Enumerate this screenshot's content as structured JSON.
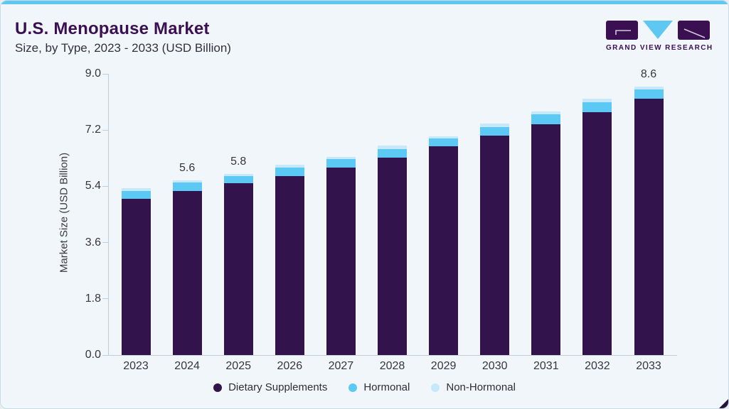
{
  "header": {
    "title": "U.S. Menopause Market",
    "subtitle": "Size, by Type, 2023 - 2033 (USD Billion)"
  },
  "logo": {
    "text": "GRAND VIEW RESEARCH"
  },
  "colors": {
    "accent_blue": "#5FC8F2",
    "brand_purple": "#3A1053",
    "background": "#F0F6FA",
    "axis_gray": "#C2CCD6",
    "text_dark": "#36363E"
  },
  "chart_data": {
    "type": "bar",
    "stacked": true,
    "title": "U.S. Menopause Market Size, by Type, 2023 - 2033 (USD Billion)",
    "categories": [
      "2023",
      "2024",
      "2025",
      "2026",
      "2027",
      "2028",
      "2029",
      "2030",
      "2031",
      "2032",
      "2033"
    ],
    "series": [
      {
        "name": "Dietary Supplements",
        "color": "#33134B",
        "values": [
          5.0,
          5.25,
          5.5,
          5.73,
          6.0,
          6.32,
          6.68,
          7.02,
          7.38,
          7.78,
          8.2
        ]
      },
      {
        "name": "Hormonal",
        "color": "#5BC9F3",
        "values": [
          0.24,
          0.28,
          0.23,
          0.28,
          0.27,
          0.28,
          0.25,
          0.27,
          0.32,
          0.3,
          0.29
        ]
      },
      {
        "name": "Non-Hormonal",
        "color": "#C5E9FB",
        "values": [
          0.09,
          0.07,
          0.07,
          0.09,
          0.08,
          0.1,
          0.07,
          0.11,
          0.1,
          0.12,
          0.11
        ]
      }
    ],
    "totals": [
      5.3,
      5.6,
      5.8,
      6.1,
      6.35,
      6.7,
      7.0,
      7.4,
      7.8,
      8.2,
      8.6
    ],
    "bar_labels": [
      "",
      "5.6",
      "5.8",
      "",
      "",
      "",
      "",
      "",
      "",
      "",
      "8.6"
    ],
    "xlabel": "",
    "ylabel": "Market Size (USD Billion)",
    "ylim": [
      0,
      9.0
    ],
    "yticks": [
      "0.0",
      "1.8",
      "3.6",
      "5.4",
      "7.2",
      "9.0"
    ],
    "grid": false,
    "legend_position": "bottom"
  }
}
